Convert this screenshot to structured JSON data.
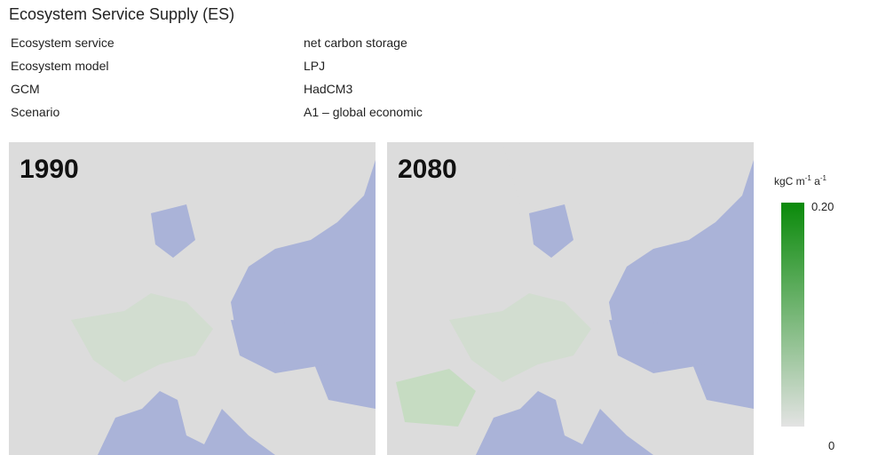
{
  "title": "Ecosystem Service Supply (ES)",
  "info": [
    {
      "label": "Ecosystem service",
      "value": "net carbon storage"
    },
    {
      "label": "Ecosystem model",
      "value": "LPJ"
    },
    {
      "label": "GCM",
      "value": "HadCM3"
    },
    {
      "label": "Scenario",
      "value": "A1 – global economic"
    }
  ],
  "maps": [
    {
      "label": "1990"
    },
    {
      "label": "2080"
    }
  ],
  "legend": {
    "unit": [
      "kgC m",
      "-1",
      " a",
      "-1"
    ],
    "max_label": "0.20",
    "min_label": "0"
  }
}
